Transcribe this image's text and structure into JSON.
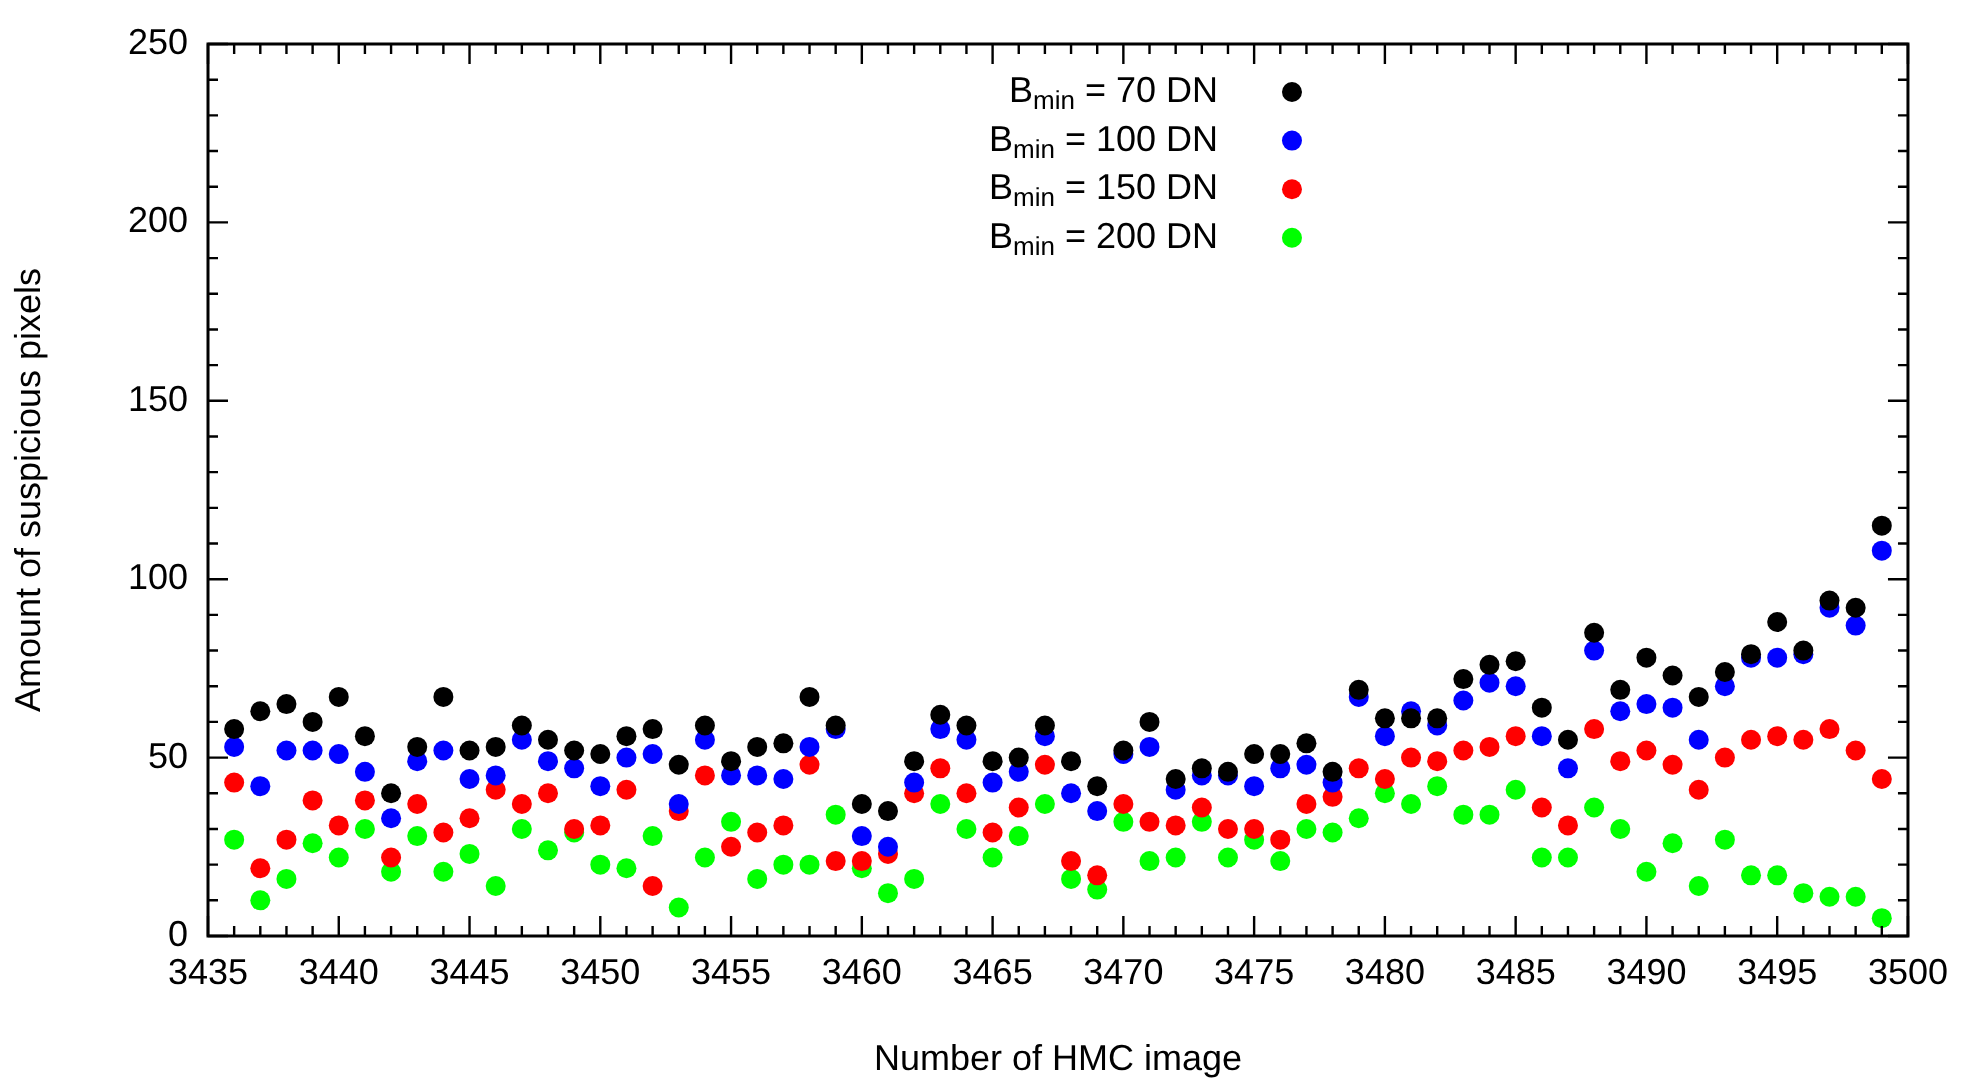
{
  "chart_data": {
    "type": "scatter",
    "xlabel": "Number of HMC image",
    "ylabel": "Amount of suspicious pixels",
    "x": [
      3436,
      3437,
      3438,
      3439,
      3440,
      3441,
      3442,
      3443,
      3444,
      3445,
      3446,
      3447,
      3448,
      3449,
      3450,
      3451,
      3452,
      3453,
      3454,
      3455,
      3456,
      3457,
      3458,
      3459,
      3460,
      3461,
      3462,
      3463,
      3464,
      3465,
      3466,
      3467,
      3468,
      3469,
      3470,
      3471,
      3472,
      3473,
      3474,
      3475,
      3476,
      3477,
      3478,
      3479,
      3480,
      3481,
      3482,
      3483,
      3484,
      3485,
      3486,
      3487,
      3488,
      3489,
      3490,
      3491,
      3492,
      3493,
      3494,
      3495,
      3496,
      3497,
      3498,
      3499
    ],
    "series": [
      {
        "name": "B$_{min}$ = 70 DN",
        "color": "#000000",
        "values": [
          58,
          63,
          65,
          60,
          67,
          56,
          40,
          53,
          67,
          52,
          53,
          59,
          55,
          52,
          51,
          56,
          58,
          48,
          59,
          49,
          53,
          54,
          67,
          59,
          37,
          35,
          49,
          62,
          59,
          49,
          50,
          59,
          49,
          42,
          52,
          60,
          44,
          47,
          46,
          51,
          51,
          54,
          46,
          69,
          61,
          61,
          61,
          72,
          76,
          77,
          64,
          55,
          85,
          69,
          78,
          73,
          67,
          74,
          79,
          88,
          80,
          94,
          92,
          115
        ]
      },
      {
        "name": "B$_{min}$ = 100 DN",
        "color": "#0000ff",
        "values": [
          53,
          42,
          52,
          52,
          51,
          46,
          33,
          49,
          52,
          44,
          45,
          55,
          49,
          47,
          42,
          50,
          51,
          37,
          55,
          45,
          45,
          44,
          53,
          58,
          28,
          25,
          43,
          58,
          55,
          43,
          46,
          56,
          40,
          35,
          51,
          53,
          41,
          45,
          45,
          42,
          47,
          48,
          43,
          67,
          56,
          63,
          59,
          66,
          71,
          70,
          56,
          47,
          80,
          63,
          65,
          64,
          55,
          70,
          78,
          78,
          79,
          92,
          87,
          108
        ]
      },
      {
        "name": "B$_{min}$ = 150 DN",
        "color": "#ff0000",
        "values": [
          43,
          19,
          27,
          38,
          31,
          38,
          22,
          37,
          29,
          33,
          41,
          37,
          40,
          30,
          31,
          41,
          14,
          35,
          45,
          25,
          29,
          31,
          48,
          21,
          21,
          23,
          40,
          47,
          40,
          29,
          36,
          48,
          21,
          17,
          37,
          32,
          31,
          36,
          30,
          30,
          27,
          37,
          39,
          47,
          44,
          50,
          49,
          52,
          53,
          56,
          36,
          31,
          58,
          49,
          52,
          48,
          41,
          50,
          55,
          56,
          55,
          58,
          52,
          44
        ]
      },
      {
        "name": "B$_{min}$ = 200 DN",
        "color": "#00ff00",
        "values": [
          27,
          10,
          16,
          26,
          22,
          30,
          18,
          28,
          18,
          23,
          14,
          30,
          24,
          29,
          20,
          19,
          28,
          8,
          22,
          32,
          16,
          20,
          20,
          34,
          19,
          12,
          16,
          37,
          30,
          22,
          28,
          37,
          16,
          13,
          32,
          21,
          22,
          32,
          22,
          27,
          21,
          30,
          29,
          33,
          40,
          37,
          42,
          34,
          34,
          41,
          22,
          22,
          36,
          30,
          18,
          26,
          14,
          27,
          17,
          17,
          12,
          11,
          11,
          5
        ]
      }
    ],
    "xlim": [
      3435,
      3500
    ],
    "xticks": [
      3435,
      {
        "value": 3436,
        "label": null
      },
      {
        "value": 3437,
        "label": null
      },
      {
        "value": 3438,
        "label": null
      },
      {
        "value": 3439,
        "label": null
      },
      3440,
      {
        "value": 3441,
        "label": null
      },
      {
        "value": 3442,
        "label": null
      },
      {
        "value": 3443,
        "label": null
      },
      {
        "value": 3444,
        "label": null
      },
      3445,
      {
        "value": 3446,
        "label": null
      },
      {
        "value": 3447,
        "label": null
      },
      {
        "value": 3448,
        "label": null
      },
      {
        "value": 3449,
        "label": null
      },
      3450,
      {
        "value": 3451,
        "label": null
      },
      {
        "value": 3452,
        "label": null
      },
      {
        "value": 3453,
        "label": null
      },
      {
        "value": 3454,
        "label": null
      },
      3455,
      {
        "value": 3456,
        "label": null
      },
      {
        "value": 3457,
        "label": null
      },
      {
        "value": 3458,
        "label": null
      },
      {
        "value": 3459,
        "label": null
      },
      3460,
      {
        "value": 3461,
        "label": null
      },
      {
        "value": 3462,
        "label": null
      },
      {
        "value": 3463,
        "label": null
      },
      {
        "value": 3464,
        "label": null
      },
      3465,
      {
        "value": 3466,
        "label": null
      },
      {
        "value": 3467,
        "label": null
      },
      {
        "value": 3468,
        "label": null
      },
      {
        "value": 3469,
        "label": null
      },
      3470,
      {
        "value": 3471,
        "label": null
      },
      {
        "value": 3472,
        "label": null
      },
      {
        "value": 3473,
        "label": null
      },
      {
        "value": 3474,
        "label": null
      },
      3475,
      {
        "value": 3476,
        "label": null
      },
      {
        "value": 3477,
        "label": null
      },
      {
        "value": 3478,
        "label": null
      },
      {
        "value": 3479,
        "label": null
      },
      3480,
      {
        "value": 3481,
        "label": null
      },
      {
        "value": 3482,
        "label": null
      },
      {
        "value": 3483,
        "label": null
      },
      {
        "value": 3484,
        "label": null
      },
      3485,
      {
        "value": 3486,
        "label": null
      },
      {
        "value": 3487,
        "label": null
      },
      {
        "value": 3488,
        "label": null
      },
      {
        "value": 3489,
        "label": null
      },
      3490,
      {
        "value": 3491,
        "label": null
      },
      {
        "value": 3492,
        "label": null
      },
      {
        "value": 3493,
        "label": null
      },
      {
        "value": 3494,
        "label": null
      },
      3495,
      {
        "value": 3496,
        "label": null
      },
      {
        "value": 3497,
        "label": null
      },
      {
        "value": 3498,
        "label": null
      },
      {
        "value": 3499,
        "label": null
      },
      3500
    ],
    "ylim": [
      0,
      250
    ],
    "yticks": [
      0,
      {
        "value": 10,
        "label": null
      },
      {
        "value": 20,
        "label": null
      },
      {
        "value": 30,
        "label": null
      },
      {
        "value": 40,
        "label": null
      },
      50,
      {
        "value": 60,
        "label": null
      },
      {
        "value": 70,
        "label": null
      },
      {
        "value": 80,
        "label": null
      },
      {
        "value": 90,
        "label": null
      },
      100,
      {
        "value": 110,
        "label": null
      },
      {
        "value": 120,
        "label": null
      },
      {
        "value": 130,
        "label": null
      },
      {
        "value": 140,
        "label": null
      },
      150,
      {
        "value": 160,
        "label": null
      },
      {
        "value": 170,
        "label": null
      },
      {
        "value": 180,
        "label": null
      },
      {
        "value": 190,
        "label": null
      },
      200,
      {
        "value": 210,
        "label": null
      },
      {
        "value": 220,
        "label": null
      },
      {
        "value": 230,
        "label": null
      },
      {
        "value": 240,
        "label": null
      },
      250
    ],
    "grid": false,
    "legend": "top",
    "marker": "circle"
  }
}
